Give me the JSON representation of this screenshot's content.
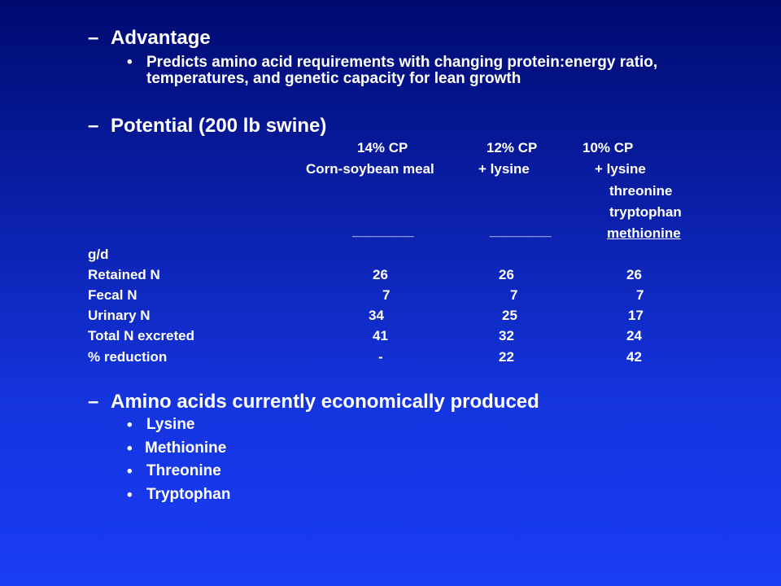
{
  "slide": {
    "dash": "–",
    "bullet": "•",
    "advantage": {
      "heading": "Advantage",
      "text": "Predicts amino acid requirements with changing protein:energy ratio, temperatures, and genetic capacity for lean growth"
    },
    "potential": {
      "heading": "Potential (200 lb swine)",
      "columns": [
        "14% CP",
        "12% CP",
        "10% CP"
      ],
      "diets": [
        "Corn-soybean meal",
        "+ lysine",
        "+ lysine"
      ],
      "extra_aa": [
        "threonine",
        "tryptophan",
        "methionine"
      ],
      "underline_blank": "________",
      "unit": "g/d",
      "rows": [
        {
          "label": "Retained N",
          "values": [
            "26",
            "26",
            "26"
          ]
        },
        {
          "label": "Fecal N",
          "values": [
            "7",
            "7",
            "7"
          ]
        },
        {
          "label": "Urinary N",
          "values": [
            "34",
            "25",
            "17"
          ]
        },
        {
          "label": "Total N excreted",
          "values": [
            "41",
            "32",
            "24"
          ]
        },
        {
          "label": "% reduction",
          "values": [
            "-",
            "22",
            "42"
          ]
        }
      ]
    },
    "amino_acids": {
      "heading": "Amino acids currently economically produced",
      "items": [
        "Lysine",
        "Methionine",
        "Threonine",
        "Tryptophan"
      ]
    }
  }
}
